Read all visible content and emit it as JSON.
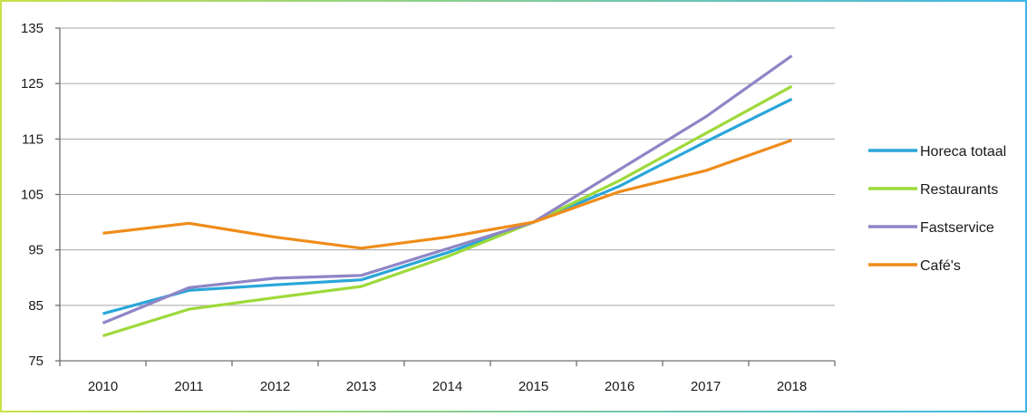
{
  "colors": {
    "frame_left": "#c6e24a",
    "frame_right": "#3fb6e8",
    "grid": "#a6a6a6",
    "axis": "#707070"
  },
  "chart_data": {
    "type": "line",
    "title": "",
    "xlabel": "",
    "ylabel": "",
    "x": [
      "2010",
      "2011",
      "2012",
      "2013",
      "2014",
      "2015",
      "2016",
      "2017",
      "2018"
    ],
    "ylim": [
      75,
      135
    ],
    "yticks": [
      "75",
      "85",
      "95",
      "105",
      "115",
      "125",
      "135"
    ],
    "grid": true,
    "legend_position": "right",
    "series": [
      {
        "name": "Horeca totaal",
        "color": "#2aa6d9",
        "values": [
          83.5,
          87.7,
          88.7,
          89.6,
          94.5,
          100.0,
          106.5,
          114.5,
          122.2
        ]
      },
      {
        "name": "Restaurants",
        "color": "#9ed93b",
        "values": [
          79.5,
          84.3,
          86.4,
          88.4,
          93.8,
          100.0,
          107.5,
          116.0,
          124.5
        ]
      },
      {
        "name": "Fastservice",
        "color": "#8f85c6",
        "values": [
          81.8,
          88.2,
          89.9,
          90.4,
          95.2,
          100.0,
          109.5,
          119.0,
          130.0
        ]
      },
      {
        "name": "Café's",
        "color": "#ef8c1a",
        "values": [
          98.0,
          99.8,
          97.3,
          95.3,
          97.3,
          100.0,
          105.5,
          109.3,
          114.8
        ]
      }
    ]
  }
}
